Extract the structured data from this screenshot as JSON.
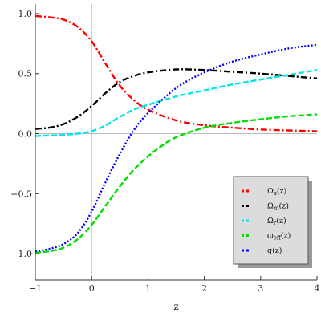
{
  "chart_data": {
    "type": "line",
    "xlabel": "z",
    "ylabel": "",
    "xlim": [
      -1,
      4
    ],
    "ylim": [
      -1.22,
      1.08
    ],
    "x_ticks": [
      -1,
      0,
      1,
      2,
      3,
      4
    ],
    "x_tick_labels": [
      "−1",
      "0",
      "1",
      "2",
      "3",
      "4"
    ],
    "y_ticks": [
      -1.0,
      -0.5,
      0.0,
      0.5,
      1.0
    ],
    "y_tick_labels": [
      "−1.0",
      "−0.5",
      "0.0",
      "0.5",
      "1.0"
    ],
    "grid": false,
    "legend_position": "bottom-right",
    "series": [
      {
        "name": "Ωx(z)",
        "name_main": "Ω",
        "name_sub": "x",
        "name_tail": "(z)",
        "color": "#ff0000",
        "style": "dash-dot",
        "x": [
          -1,
          -0.75,
          -0.5,
          -0.25,
          0,
          0.25,
          0.5,
          0.75,
          1,
          1.5,
          2,
          2.5,
          3,
          3.5,
          4
        ],
        "y": [
          0.98,
          0.97,
          0.95,
          0.89,
          0.77,
          0.58,
          0.4,
          0.28,
          0.2,
          0.11,
          0.07,
          0.05,
          0.035,
          0.027,
          0.02
        ]
      },
      {
        "name": "Ωm(z)",
        "name_main": "Ω",
        "name_sub": "m",
        "name_tail": "(z)",
        "color": "#000000",
        "style": "dash-dot",
        "x": [
          -1,
          -0.75,
          -0.5,
          -0.25,
          0,
          0.25,
          0.5,
          0.75,
          1,
          1.5,
          2,
          2.5,
          3,
          3.5,
          4
        ],
        "y": [
          0.04,
          0.05,
          0.08,
          0.14,
          0.23,
          0.34,
          0.43,
          0.48,
          0.51,
          0.535,
          0.53,
          0.515,
          0.5,
          0.48,
          0.46
        ]
      },
      {
        "name": "Ωr(z)",
        "name_main": "Ω",
        "name_sub": "r",
        "name_tail": "(z)",
        "color": "#00e5e5",
        "style": "dashed",
        "x": [
          -1,
          -0.75,
          -0.5,
          -0.25,
          0,
          0.25,
          0.5,
          0.75,
          1,
          1.5,
          2,
          2.5,
          3,
          3.5,
          4
        ],
        "y": [
          -0.02,
          -0.015,
          -0.01,
          0,
          0.02,
          0.07,
          0.14,
          0.2,
          0.24,
          0.31,
          0.36,
          0.41,
          0.45,
          0.49,
          0.53
        ]
      },
      {
        "name": "ωeff(z)",
        "name_main": "ω",
        "name_sub": "eff",
        "name_tail": "(z)",
        "color": "#00e000",
        "style": "dashed",
        "x": [
          -1,
          -0.75,
          -0.5,
          -0.25,
          0,
          0.25,
          0.5,
          0.75,
          1,
          1.25,
          1.5,
          2,
          2.5,
          3,
          3.5,
          4
        ],
        "y": [
          -0.99,
          -0.98,
          -0.95,
          -0.88,
          -0.76,
          -0.6,
          -0.44,
          -0.3,
          -0.19,
          -0.1,
          -0.03,
          0.05,
          0.09,
          0.12,
          0.145,
          0.16
        ]
      },
      {
        "name": "q(z)",
        "name_main": "q",
        "name_sub": "",
        "name_tail": "(z)",
        "color": "#0000ff",
        "style": "dotted",
        "x": [
          -1,
          -0.75,
          -0.5,
          -0.25,
          0,
          0.25,
          0.5,
          0.75,
          1,
          1.5,
          2,
          2.5,
          3,
          3.5,
          4
        ],
        "y": [
          -0.98,
          -0.96,
          -0.92,
          -0.83,
          -0.65,
          -0.4,
          -0.17,
          0.03,
          0.17,
          0.38,
          0.51,
          0.6,
          0.66,
          0.71,
          0.74
        ]
      }
    ]
  }
}
